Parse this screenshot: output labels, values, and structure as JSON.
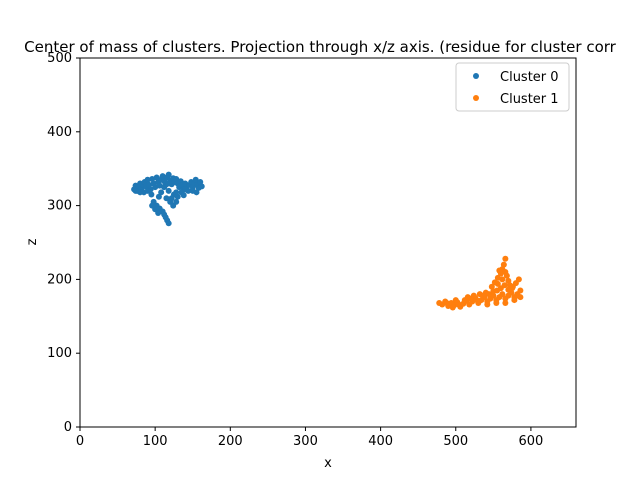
{
  "chart_data": {
    "type": "scatter",
    "title": "Center of mass of clusters. Projection through x/z axis. (residue for cluster corr",
    "xlabel": "x",
    "ylabel": "z",
    "xlim": [
      0,
      660
    ],
    "ylim": [
      0,
      500
    ],
    "xticks": [
      0,
      100,
      200,
      300,
      400,
      500,
      600
    ],
    "yticks": [
      0,
      100,
      200,
      300,
      400,
      500
    ],
    "grid": false,
    "legend_position": "top-right",
    "series": [
      {
        "name": "Cluster 0",
        "color": "#1f77b4",
        "points": [
          [
            72,
            322
          ],
          [
            74,
            327
          ],
          [
            76,
            320
          ],
          [
            78,
            325
          ],
          [
            80,
            330
          ],
          [
            82,
            323
          ],
          [
            84,
            328
          ],
          [
            86,
            332
          ],
          [
            88,
            326
          ],
          [
            90,
            335
          ],
          [
            92,
            328
          ],
          [
            94,
            322
          ],
          [
            96,
            336
          ],
          [
            98,
            330
          ],
          [
            100,
            325
          ],
          [
            102,
            338
          ],
          [
            104,
            332
          ],
          [
            106,
            327
          ],
          [
            108,
            335
          ],
          [
            110,
            340
          ],
          [
            112,
            333
          ],
          [
            114,
            328
          ],
          [
            116,
            338
          ],
          [
            118,
            342
          ],
          [
            120,
            334
          ],
          [
            122,
            329
          ],
          [
            124,
            337
          ],
          [
            126,
            332
          ],
          [
            128,
            336
          ],
          [
            130,
            330
          ],
          [
            132,
            325
          ],
          [
            134,
            333
          ],
          [
            136,
            328
          ],
          [
            138,
            322
          ],
          [
            140,
            330
          ],
          [
            142,
            326
          ],
          [
            144,
            320
          ],
          [
            146,
            328
          ],
          [
            148,
            332
          ],
          [
            150,
            325
          ],
          [
            152,
            330
          ],
          [
            154,
            335
          ],
          [
            156,
            328
          ],
          [
            158,
            324
          ],
          [
            160,
            332
          ],
          [
            162,
            326
          ],
          [
            85,
            318
          ],
          [
            95,
            315
          ],
          [
            105,
            312
          ],
          [
            115,
            310
          ],
          [
            125,
            315
          ],
          [
            135,
            318
          ],
          [
            98,
            305
          ],
          [
            102,
            300
          ],
          [
            106,
            296
          ],
          [
            110,
            292
          ],
          [
            112,
            288
          ],
          [
            114,
            284
          ],
          [
            116,
            280
          ],
          [
            118,
            276
          ],
          [
            120,
            305
          ],
          [
            122,
            310
          ],
          [
            108,
            318
          ],
          [
            118,
            320
          ],
          [
            128,
            318
          ],
          [
            138,
            314
          ],
          [
            100,
            295
          ],
          [
            96,
            300
          ],
          [
            104,
            290
          ],
          [
            124,
            300
          ],
          [
            128,
            305
          ],
          [
            130,
            312
          ],
          [
            140,
            322
          ],
          [
            150,
            320
          ],
          [
            155,
            318
          ],
          [
            90,
            320
          ],
          [
            80,
            318
          ],
          [
            74,
            320
          ],
          [
            118,
            330
          ],
          [
            112,
            325
          ]
        ]
      },
      {
        "name": "Cluster 1",
        "color": "#ff7f0e",
        "points": [
          [
            478,
            168
          ],
          [
            482,
            166
          ],
          [
            486,
            170
          ],
          [
            490,
            164
          ],
          [
            494,
            168
          ],
          [
            498,
            165
          ],
          [
            502,
            169
          ],
          [
            506,
            163
          ],
          [
            510,
            167
          ],
          [
            514,
            171
          ],
          [
            518,
            166
          ],
          [
            522,
            170
          ],
          [
            526,
            175
          ],
          [
            530,
            168
          ],
          [
            534,
            172
          ],
          [
            538,
            176
          ],
          [
            542,
            170
          ],
          [
            546,
            174
          ],
          [
            550,
            178
          ],
          [
            554,
            172
          ],
          [
            558,
            176
          ],
          [
            562,
            180
          ],
          [
            566,
            174
          ],
          [
            570,
            178
          ],
          [
            574,
            182
          ],
          [
            578,
            176
          ],
          [
            582,
            180
          ],
          [
            586,
            185
          ],
          [
            548,
            190
          ],
          [
            552,
            196
          ],
          [
            556,
            202
          ],
          [
            560,
            208
          ],
          [
            562,
            214
          ],
          [
            564,
            220
          ],
          [
            566,
            228
          ],
          [
            568,
            205
          ],
          [
            570,
            198
          ],
          [
            572,
            192
          ],
          [
            575,
            188
          ],
          [
            580,
            195
          ],
          [
            584,
            200
          ],
          [
            555,
            185
          ],
          [
            560,
            188
          ],
          [
            565,
            192
          ],
          [
            544,
            180
          ],
          [
            540,
            182
          ],
          [
            536,
            178
          ],
          [
            532,
            180
          ],
          [
            528,
            172
          ],
          [
            520,
            174
          ],
          [
            512,
            172
          ],
          [
            504,
            166
          ],
          [
            496,
            162
          ],
          [
            488,
            168
          ],
          [
            500,
            172
          ],
          [
            516,
            176
          ],
          [
            524,
            178
          ],
          [
            558,
            212
          ],
          [
            562,
            200
          ],
          [
            566,
            210
          ],
          [
            556,
            194
          ],
          [
            550,
            184
          ],
          [
            570,
            186
          ],
          [
            576,
            190
          ],
          [
            582,
            178
          ],
          [
            586,
            176
          ],
          [
            578,
            172
          ],
          [
            566,
            168
          ],
          [
            554,
            168
          ],
          [
            542,
            166
          ]
        ]
      }
    ]
  }
}
